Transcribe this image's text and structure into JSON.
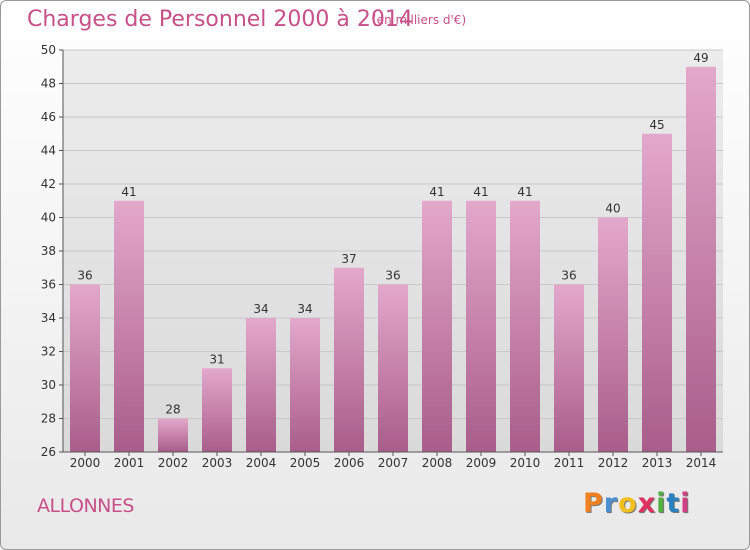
{
  "header": {
    "title": "Charges de Personnel 2000 à 2014",
    "subtitle": "(en milliers d'€)"
  },
  "footer": {
    "commune": "ALLONNES",
    "logo_text": "Proxiti"
  },
  "colors": {
    "title": "#c8508a",
    "bar_top": "#e3a8cb",
    "bar_bottom": "#a95d8a",
    "logo": [
      "#f08020",
      "#4a90d0",
      "#f0c020",
      "#e03060",
      "#50b040",
      "#2a80c0",
      "#d04080"
    ]
  },
  "chart_data": {
    "type": "bar",
    "title": "Charges de Personnel 2000 à 2014",
    "subtitle": "(en milliers d'€)",
    "xlabel": "",
    "ylabel": "",
    "categories": [
      "2000",
      "2001",
      "2002",
      "2003",
      "2004",
      "2005",
      "2006",
      "2007",
      "2008",
      "2009",
      "2010",
      "2011",
      "2012",
      "2013",
      "2014"
    ],
    "values": [
      36,
      41,
      28,
      31,
      34,
      34,
      37,
      36,
      41,
      41,
      41,
      36,
      40,
      45,
      49
    ],
    "ylim": [
      26,
      50
    ],
    "yticks": [
      26,
      28,
      30,
      32,
      34,
      36,
      38,
      40,
      42,
      44,
      46,
      48,
      50
    ],
    "grid": true,
    "legend": "none"
  }
}
